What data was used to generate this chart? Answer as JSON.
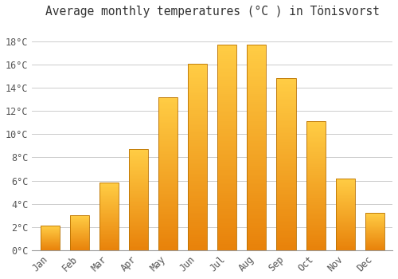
{
  "title": "Average monthly temperatures (°C ) in Tönisvorst",
  "months": [
    "Jan",
    "Feb",
    "Mar",
    "Apr",
    "May",
    "Jun",
    "Jul",
    "Aug",
    "Sep",
    "Oct",
    "Nov",
    "Dec"
  ],
  "values": [
    2.1,
    3.0,
    5.8,
    8.7,
    13.2,
    16.1,
    17.7,
    17.7,
    14.8,
    11.1,
    6.2,
    3.2
  ],
  "bar_color_bottom": "#E8820A",
  "bar_color_top": "#FFCC44",
  "bar_edge_color": "#B87000",
  "background_color": "#ffffff",
  "plot_background": "#ffffff",
  "grid_color": "#cccccc",
  "yticks": [
    0,
    2,
    4,
    6,
    8,
    10,
    12,
    14,
    16,
    18
  ],
  "ylim": [
    0,
    19.5
  ],
  "title_fontsize": 10.5,
  "tick_fontsize": 8.5,
  "bar_width": 0.65
}
